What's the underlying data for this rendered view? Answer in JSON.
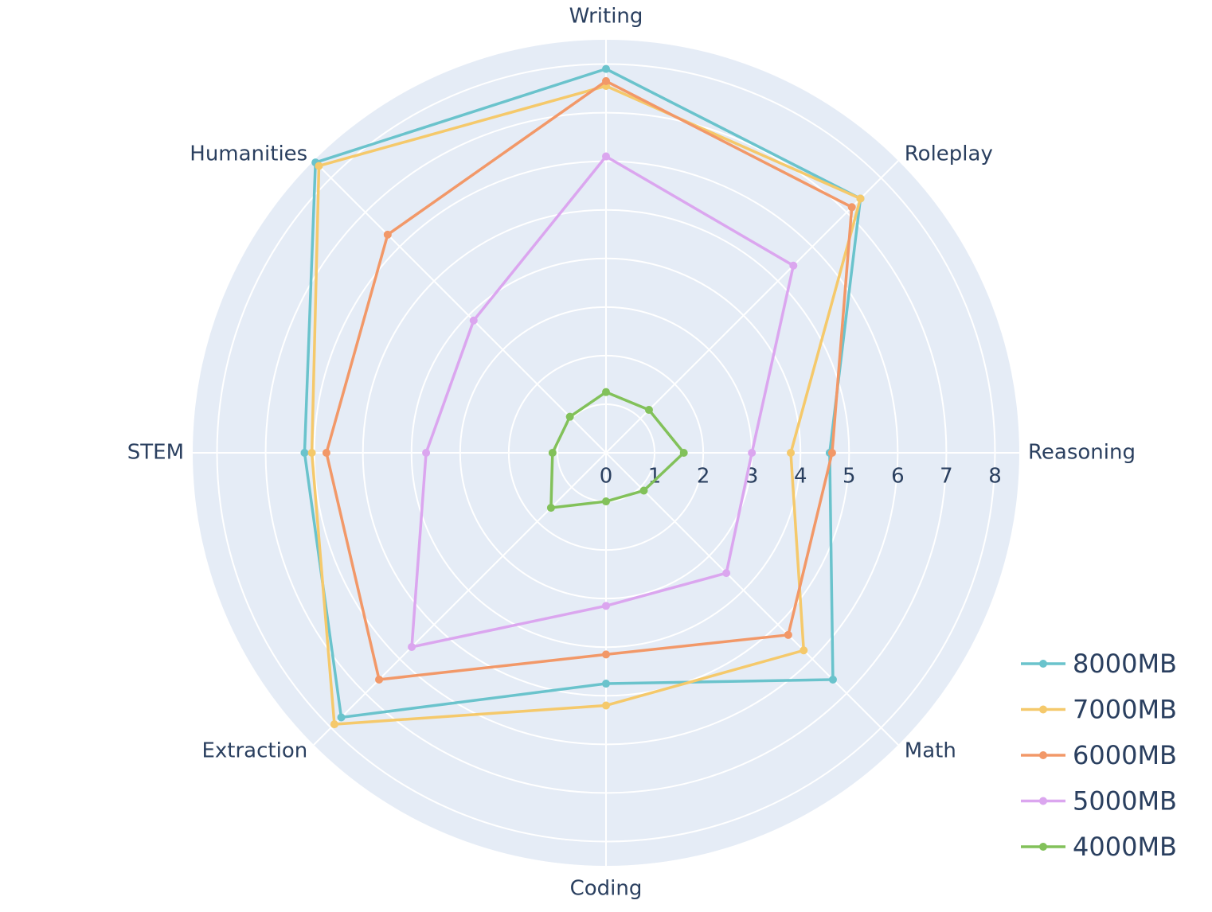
{
  "chart_data": {
    "type": "radar",
    "categories": [
      "Writing",
      "Roleplay",
      "Reasoning",
      "Math",
      "Coding",
      "Extraction",
      "STEM",
      "Humanities"
    ],
    "series": [
      {
        "name": "8000MB",
        "color": "#6ac3cc",
        "values": [
          7.9,
          7.4,
          4.6,
          6.6,
          4.75,
          7.7,
          6.2,
          8.45
        ]
      },
      {
        "name": "7000MB",
        "color": "#f5c96b",
        "values": [
          7.55,
          7.4,
          3.8,
          5.75,
          5.2,
          7.9,
          6.05,
          8.35
        ]
      },
      {
        "name": "6000MB",
        "color": "#f29868",
        "values": [
          7.65,
          7.15,
          4.65,
          5.3,
          4.15,
          6.6,
          5.75,
          6.35
        ]
      },
      {
        "name": "5000MB",
        "color": "#dba6ef",
        "values": [
          6.1,
          5.45,
          3.0,
          3.5,
          3.15,
          5.65,
          3.7,
          3.85
        ]
      },
      {
        "name": "4000MB",
        "color": "#82c15a",
        "values": [
          1.25,
          1.25,
          1.6,
          1.1,
          1.0,
          1.6,
          1.1,
          1.05
        ]
      }
    ],
    "rlim": [
      0,
      8.5
    ],
    "rticks": [
      0,
      1,
      2,
      3,
      4,
      5,
      6,
      7,
      8
    ],
    "grid": true,
    "legend": "bottom-right"
  }
}
